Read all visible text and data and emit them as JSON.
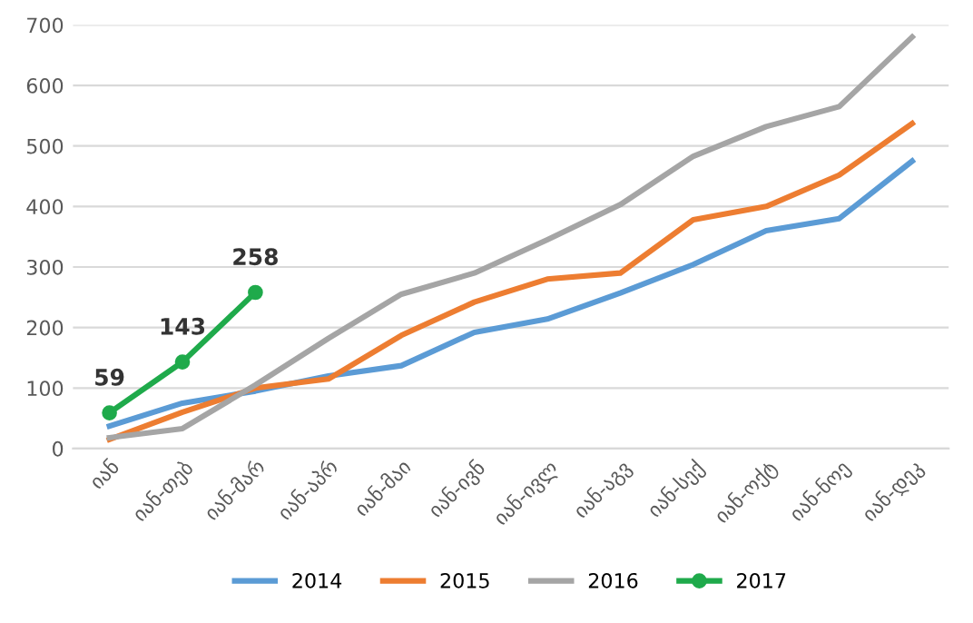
{
  "chart_data": {
    "type": "line",
    "categories": [
      "იან",
      "იან-თებ",
      "იან-მარ",
      "იან-აპრ",
      "იან-მაი",
      "იან-ივნ",
      "იან-ივლ",
      "იან-აგვ",
      "იან-სექ",
      "იან-ოქტ",
      "იან-ნოე",
      "იან-დეკ"
    ],
    "series": [
      {
        "name": "2014",
        "color": "#5b9bd5",
        "values": [
          37,
          75,
          95,
          120,
          137,
          192,
          214,
          257,
          304,
          360,
          380,
          475
        ]
      },
      {
        "name": "2015",
        "color": "#ed7d31",
        "values": [
          15,
          60,
          100,
          115,
          187,
          242,
          280,
          290,
          378,
          400,
          452,
          537
        ]
      },
      {
        "name": "2016",
        "color": "#a5a5a5",
        "values": [
          18,
          33,
          105,
          182,
          255,
          290,
          345,
          403,
          483,
          532,
          565,
          680
        ]
      },
      {
        "name": "2017",
        "color": "#1faa4b",
        "values": [
          59,
          143,
          258,
          null,
          null,
          null,
          null,
          null,
          null,
          null,
          null,
          null
        ],
        "marker": "circle",
        "value_labels": [
          "59",
          "143",
          "258",
          null,
          null,
          null,
          null,
          null,
          null,
          null,
          null,
          null
        ]
      }
    ],
    "ylim": [
      0,
      700
    ],
    "yticks": [
      0,
      100,
      200,
      300,
      400,
      500,
      600,
      700
    ],
    "grid": "y",
    "legend": "bottom",
    "line_style": "solid"
  }
}
